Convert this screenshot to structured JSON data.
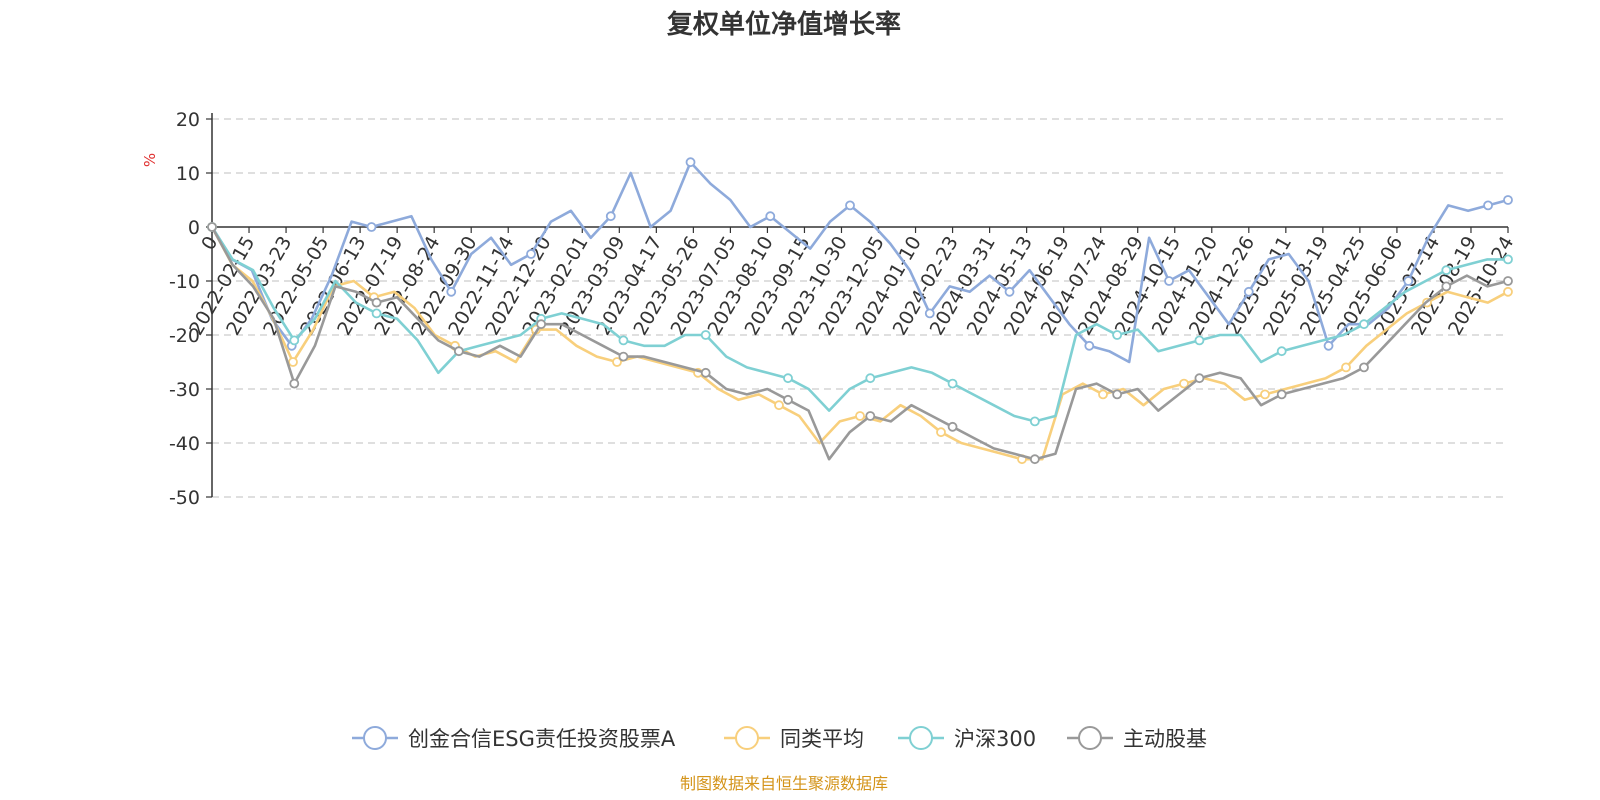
{
  "chart_data": {
    "type": "line",
    "title": "复权单位净值增长率",
    "ylabel": "%",
    "ylim": [
      -50,
      20
    ],
    "y_ticks": [
      20,
      10,
      0,
      -10,
      -20,
      -30,
      -40,
      -50
    ],
    "x_ticks": [
      "0",
      "2022-02-15",
      "2022-03-23",
      "2022-05-05",
      "2022-06-13",
      "2022-07-19",
      "2022-08-24",
      "2022-09-30",
      "2022-11-14",
      "2022-12-20",
      "2023-02-01",
      "2023-03-09",
      "2023-04-17",
      "2023-05-26",
      "2023-07-05",
      "2023-08-10",
      "2023-09-15",
      "2023-10-30",
      "2023-12-05",
      "2024-01-10",
      "2024-02-23",
      "2024-03-31",
      "2024-05-13",
      "2024-06-19",
      "2024-07-24",
      "2024-08-29",
      "2024-10-15",
      "2024-11-20",
      "2024-12-26",
      "2025-02-11",
      "2025-03-19",
      "2025-04-25",
      "2025-06-06",
      "2025-07-14",
      "2025-08-19",
      "2025-10-24"
    ],
    "grid": true,
    "legend_position": "bottom",
    "series": [
      {
        "name": "创金合信ESG责任投资股票A",
        "color": "#8eaadb",
        "values": [
          0,
          -6,
          -8,
          -17,
          -22,
          -17,
          -9,
          1,
          0,
          1,
          2,
          -6,
          -12,
          -5,
          -2,
          -7,
          -5,
          1,
          3,
          -2,
          2,
          10,
          0,
          3,
          12,
          8,
          5,
          0,
          2,
          -1,
          -4,
          1,
          4,
          1,
          -3,
          -8,
          -16,
          -11,
          -12,
          -9,
          -12,
          -8,
          -13,
          -18,
          -22,
          -23,
          -25,
          -2,
          -10,
          -8,
          -13,
          -18,
          -12,
          -6,
          -5,
          -10,
          -22,
          -18,
          -18,
          -15,
          -10,
          -2,
          4,
          3,
          4,
          5
        ]
      },
      {
        "name": "同类平均",
        "color": "#f8cf7c",
        "values": [
          0,
          -7,
          -10,
          -17,
          -25,
          -19,
          -11,
          -10,
          -13,
          -12,
          -15,
          -20,
          -22,
          -24,
          -23,
          -25,
          -19,
          -19,
          -22,
          -24,
          -25,
          -24,
          -25,
          -26,
          -27,
          -30,
          -32,
          -31,
          -33,
          -35,
          -40,
          -36,
          -35,
          -36,
          -33,
          -35,
          -38,
          -40,
          -41,
          -42,
          -43,
          -43,
          -31,
          -29,
          -31,
          -30,
          -33,
          -30,
          -29,
          -28,
          -29,
          -32,
          -31,
          -30,
          -29,
          -28,
          -26,
          -22,
          -19,
          -16,
          -14,
          -12,
          -13,
          -14,
          -12
        ]
      },
      {
        "name": "沪深300",
        "color": "#7fd0d3",
        "values": [
          0,
          -6,
          -8,
          -15,
          -21,
          -17,
          -10,
          -14,
          -16,
          -17,
          -21,
          -27,
          -23,
          -22,
          -21,
          -20,
          -17,
          -16,
          -17,
          -18,
          -21,
          -22,
          -22,
          -20,
          -20,
          -24,
          -26,
          -27,
          -28,
          -30,
          -34,
          -30,
          -28,
          -27,
          -26,
          -27,
          -29,
          -31,
          -33,
          -35,
          -36,
          -35,
          -20,
          -18,
          -20,
          -19,
          -23,
          -22,
          -21,
          -20,
          -20,
          -25,
          -23,
          -22,
          -21,
          -20,
          -18,
          -15,
          -12,
          -10,
          -8,
          -7,
          -6,
          -6
        ]
      },
      {
        "name": "主动股基",
        "color": "#999999",
        "values": [
          0,
          -7,
          -11,
          -17,
          -29,
          -22,
          -11,
          -12,
          -14,
          -13,
          -17,
          -21,
          -23,
          -24,
          -22,
          -24,
          -18,
          -18,
          -20,
          -22,
          -24,
          -24,
          -25,
          -26,
          -27,
          -30,
          -31,
          -30,
          -32,
          -34,
          -43,
          -38,
          -35,
          -36,
          -33,
          -35,
          -37,
          -39,
          -41,
          -42,
          -43,
          -42,
          -30,
          -29,
          -31,
          -30,
          -34,
          -31,
          -28,
          -27,
          -28,
          -33,
          -31,
          -30,
          -29,
          -28,
          -26,
          -22,
          -18,
          -14,
          -11,
          -9,
          -11,
          -10
        ]
      }
    ],
    "source_note": "制图数据来自恒生聚源数据库"
  }
}
